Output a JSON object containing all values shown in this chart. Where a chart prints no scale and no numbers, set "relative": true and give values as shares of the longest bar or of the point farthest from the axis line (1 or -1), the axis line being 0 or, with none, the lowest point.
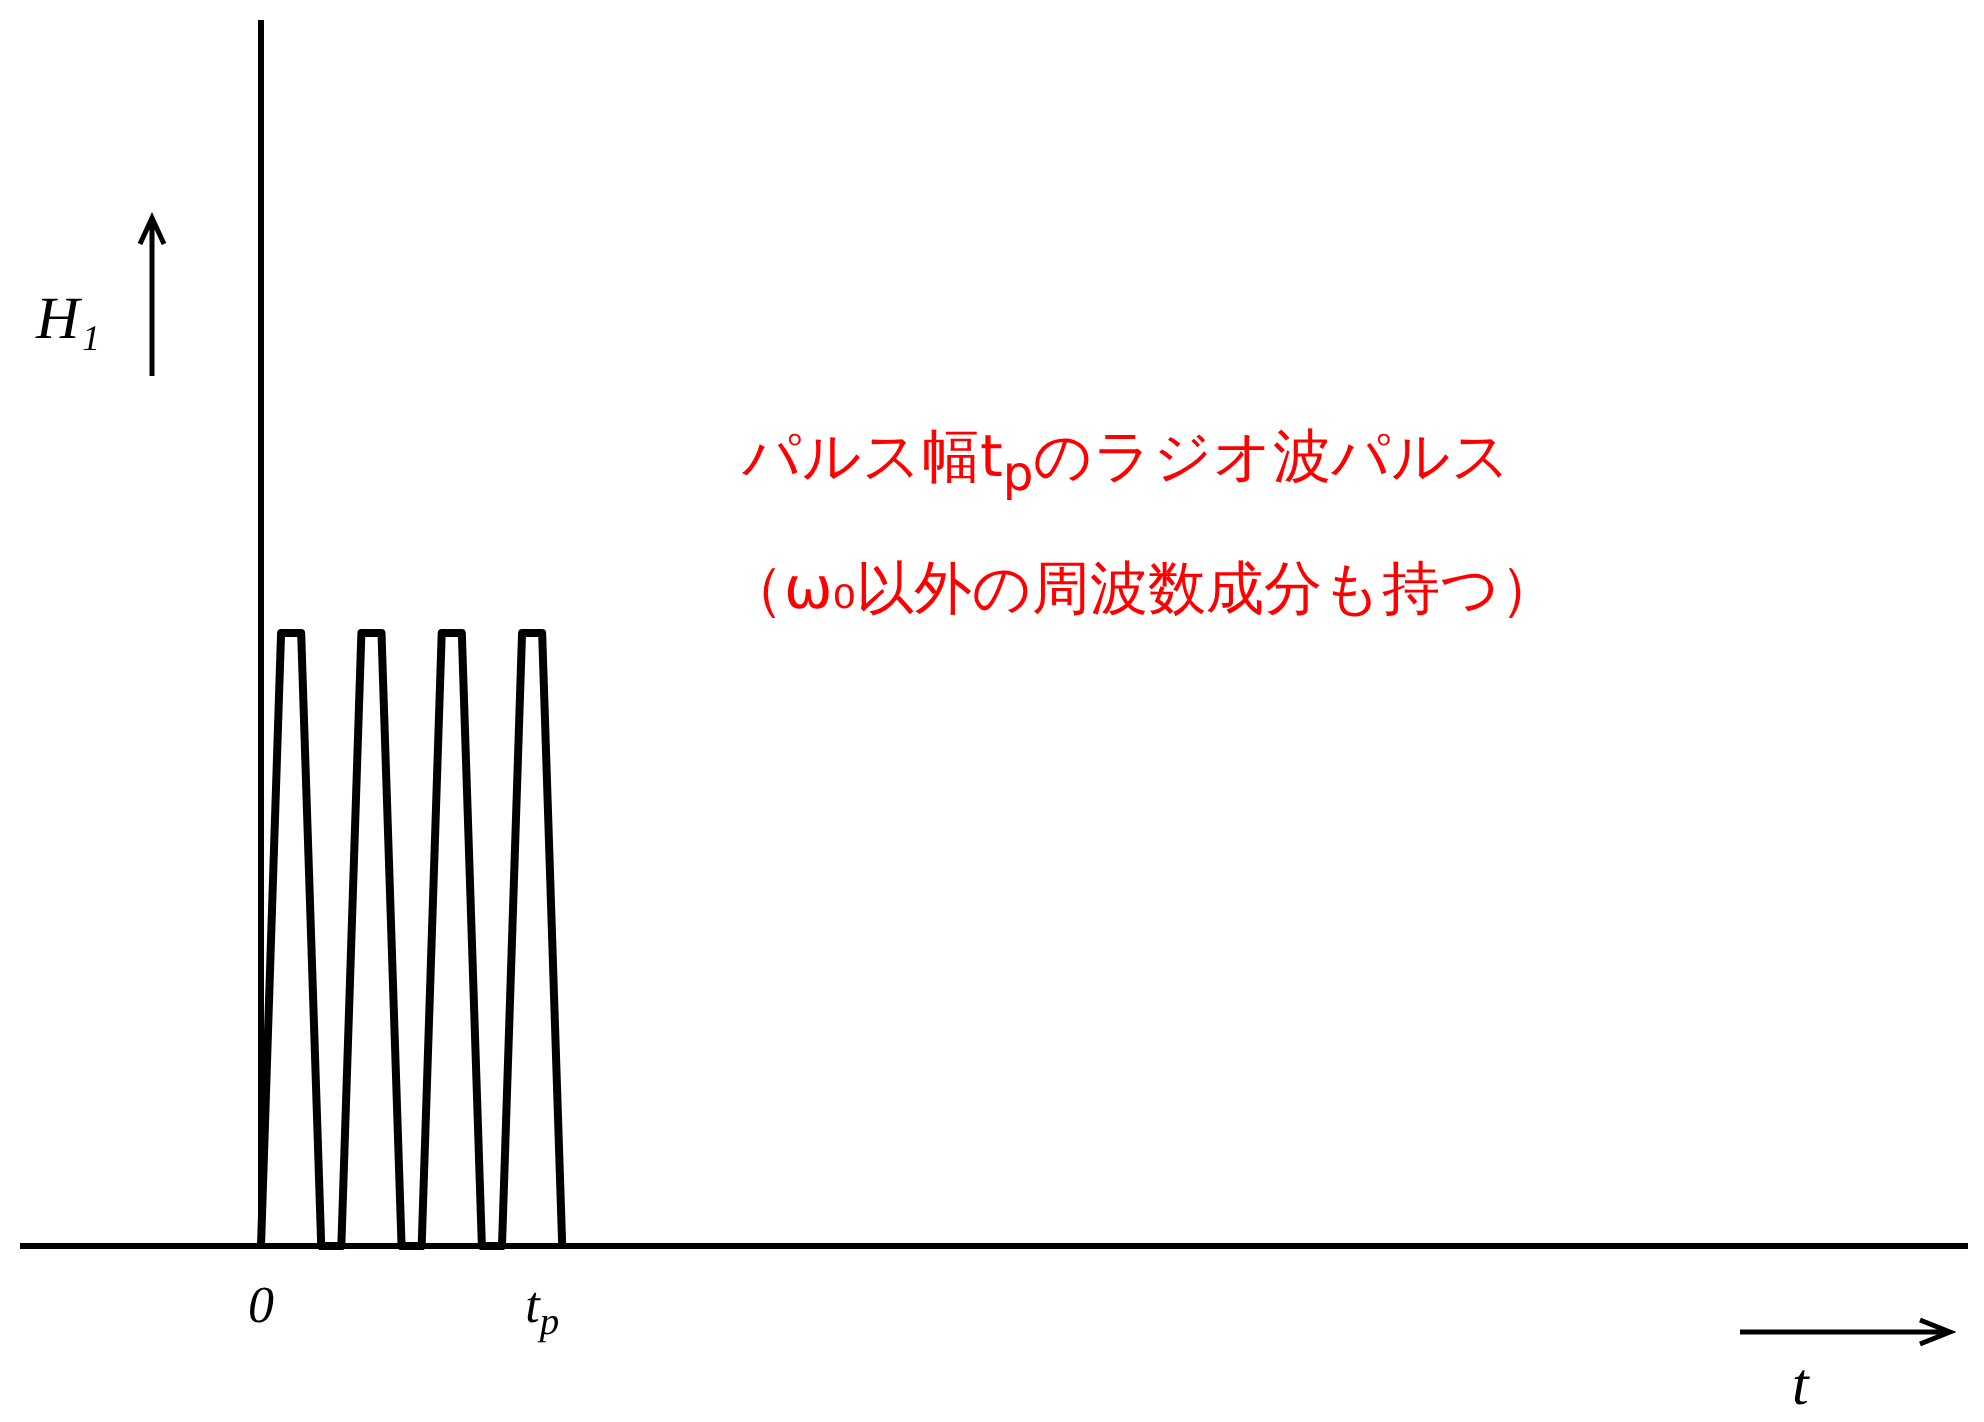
{
  "chart_data": {
    "type": "line",
    "relative": true,
    "xlabel": "t",
    "ylabel": "H₁",
    "categories": [
      null,
      null,
      null,
      null,
      null,
      null,
      null,
      null,
      null,
      null,
      null,
      null,
      "0",
      null,
      null,
      null,
      null,
      null,
      null,
      null,
      null,
      null,
      null,
      null,
      null,
      null,
      "t$_{p}$",
      null,
      null,
      null,
      null,
      null,
      null,
      null,
      null,
      null,
      null,
      null,
      null,
      null,
      null,
      null,
      null,
      null,
      null,
      null,
      null,
      null,
      null,
      null,
      null,
      null,
      null,
      null,
      null,
      null,
      null,
      null,
      null,
      null,
      null,
      null,
      null,
      null,
      null,
      null,
      null,
      null,
      null,
      null,
      null,
      null,
      null,
      null,
      null,
      null,
      null,
      null,
      null,
      null,
      null,
      null,
      null,
      null,
      null,
      null,
      null,
      null,
      null,
      null,
      null,
      null,
      null,
      null,
      null,
      null,
      null,
      null
    ],
    "series": [
      {
        "color": "#000000",
        "values": [
          null,
          null,
          null,
          null,
          null,
          null,
          null,
          null,
          null,
          null,
          null,
          null,
          0,
          1,
          1,
          0,
          0,
          1,
          1,
          0,
          0,
          1,
          1,
          0,
          0,
          1,
          1,
          0,
          null,
          null,
          null,
          null,
          null,
          null,
          null,
          null,
          null,
          null,
          null,
          null,
          null,
          null,
          null,
          null,
          null,
          null,
          null,
          null,
          null,
          null,
          null,
          null,
          null,
          null,
          null,
          null,
          null,
          null,
          null,
          null,
          null,
          null,
          null,
          null,
          null,
          null,
          null,
          null,
          null,
          null,
          null,
          null,
          null,
          null,
          null,
          null,
          null,
          null,
          null,
          null,
          null,
          null,
          null,
          null,
          null,
          null,
          null,
          null,
          null,
          null,
          null,
          null,
          null,
          null,
          null,
          null,
          null,
          null
        ]
      }
    ],
    "annotations": [
      "パルス幅t$_{p}$のラジオ波パルス",
      "（ω₀以外の周波数成分も持つ）"
    ],
    "grid": false,
    "marker": "none",
    "line_style": "solid"
  }
}
